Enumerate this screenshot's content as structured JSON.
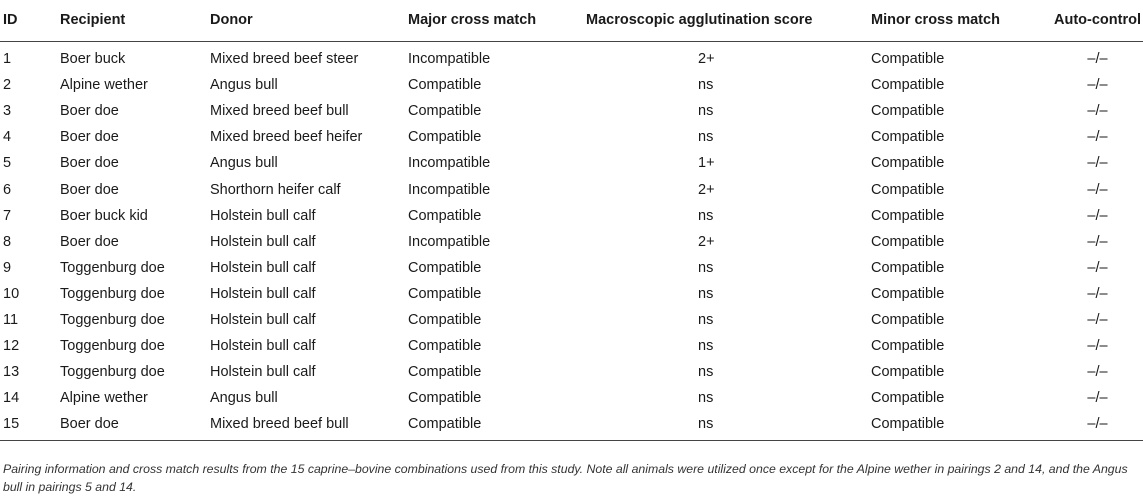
{
  "table": {
    "headers": {
      "id": "ID",
      "recipient": "Recipient",
      "donor": "Donor",
      "major": "Major cross match",
      "macro": "Macroscopic agglutination score",
      "minor": "Minor cross match",
      "auto": "Auto-control"
    },
    "rows": [
      {
        "id": "1",
        "recipient": "Boer buck",
        "donor": "Mixed breed beef steer",
        "major": "Incompatible",
        "macro": "2+",
        "minor": "Compatible",
        "auto": "–/–"
      },
      {
        "id": "2",
        "recipient": "Alpine wether",
        "donor": "Angus bull",
        "major": "Compatible",
        "macro": "ns",
        "minor": "Compatible",
        "auto": "–/–"
      },
      {
        "id": "3",
        "recipient": "Boer doe",
        "donor": "Mixed breed beef bull",
        "major": "Compatible",
        "macro": "ns",
        "minor": "Compatible",
        "auto": "–/–"
      },
      {
        "id": "4",
        "recipient": "Boer doe",
        "donor": "Mixed breed beef heifer",
        "major": "Compatible",
        "macro": "ns",
        "minor": "Compatible",
        "auto": "–/–"
      },
      {
        "id": "5",
        "recipient": "Boer doe",
        "donor": "Angus bull",
        "major": "Incompatible",
        "macro": "1+",
        "minor": "Compatible",
        "auto": "–/–"
      },
      {
        "id": "6",
        "recipient": "Boer doe",
        "donor": "Shorthorn heifer calf",
        "major": "Incompatible",
        "macro": "2+",
        "minor": "Compatible",
        "auto": "–/–"
      },
      {
        "id": "7",
        "recipient": "Boer buck kid",
        "donor": "Holstein bull calf",
        "major": "Compatible",
        "macro": "ns",
        "minor": "Compatible",
        "auto": "–/–"
      },
      {
        "id": "8",
        "recipient": "Boer doe",
        "donor": "Holstein bull calf",
        "major": "Incompatible",
        "macro": "2+",
        "minor": "Compatible",
        "auto": "–/–"
      },
      {
        "id": "9",
        "recipient": "Toggenburg doe",
        "donor": "Holstein bull calf",
        "major": "Compatible",
        "macro": "ns",
        "minor": "Compatible",
        "auto": "–/–"
      },
      {
        "id": "10",
        "recipient": "Toggenburg doe",
        "donor": "Holstein bull calf",
        "major": "Compatible",
        "macro": "ns",
        "minor": "Compatible",
        "auto": "–/–"
      },
      {
        "id": "11",
        "recipient": "Toggenburg doe",
        "donor": "Holstein bull calf",
        "major": "Compatible",
        "macro": "ns",
        "minor": "Compatible",
        "auto": "–/–"
      },
      {
        "id": "12",
        "recipient": "Toggenburg doe",
        "donor": "Holstein bull calf",
        "major": "Compatible",
        "macro": "ns",
        "minor": "Compatible",
        "auto": "–/–"
      },
      {
        "id": "13",
        "recipient": "Toggenburg doe",
        "donor": "Holstein bull calf",
        "major": "Compatible",
        "macro": "ns",
        "minor": "Compatible",
        "auto": "–/–"
      },
      {
        "id": "14",
        "recipient": "Alpine wether",
        "donor": "Angus bull",
        "major": "Compatible",
        "macro": "ns",
        "minor": "Compatible",
        "auto": "–/–"
      },
      {
        "id": "15",
        "recipient": "Boer doe",
        "donor": "Mixed breed beef bull",
        "major": "Compatible",
        "macro": "ns",
        "minor": "Compatible",
        "auto": "–/–"
      }
    ]
  },
  "caption": "Pairing information and cross match results from the 15 caprine–bovine combinations used from this study. Note all animals were utilized once except for the Alpine wether in pairings 2 and 14, and the Angus bull in pairings 5 and 14."
}
